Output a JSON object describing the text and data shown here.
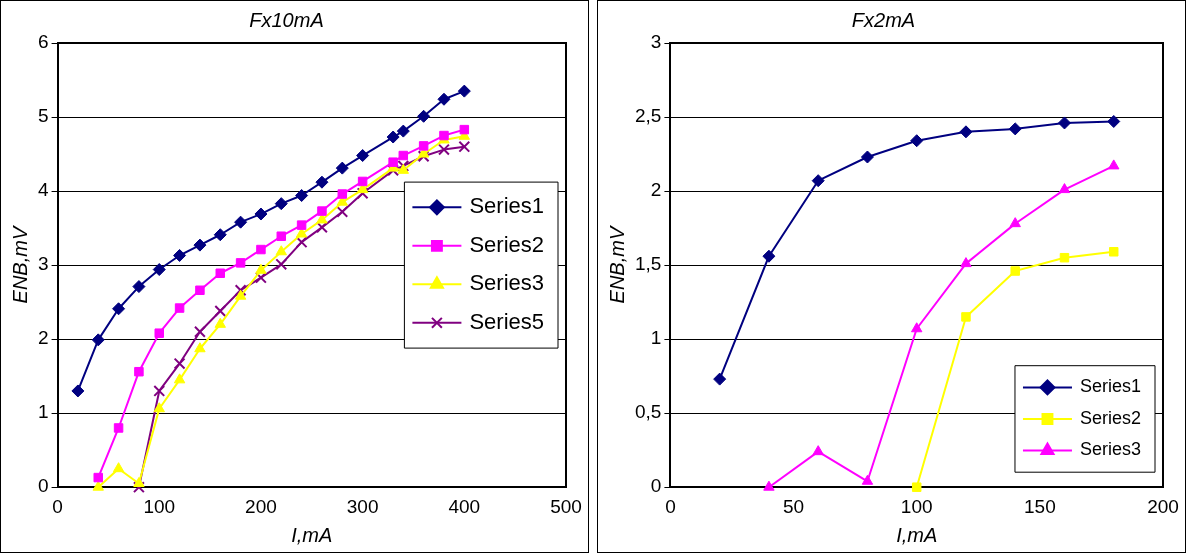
{
  "chart_data": [
    {
      "type": "line",
      "title": "Fx10mA",
      "xlabel": "I,mA",
      "ylabel": "ENB,mV",
      "xlim": [
        0,
        500
      ],
      "xticks": [
        0,
        100,
        200,
        300,
        400,
        500
      ],
      "ylim": [
        0,
        6
      ],
      "yticks": [
        0,
        1,
        2,
        3,
        4,
        5,
        6
      ],
      "grid": "y",
      "legend": "right",
      "line_style": "solid",
      "series": [
        {
          "name": "Series1",
          "color": "#000080",
          "marker": "diamond",
          "x": [
            20,
            40,
            60,
            80,
            100,
            120,
            140,
            160,
            180,
            200,
            220,
            240,
            260,
            280,
            300,
            330,
            340,
            360,
            380,
            400
          ],
          "values": [
            1.3,
            1.99,
            2.41,
            2.71,
            2.94,
            3.13,
            3.27,
            3.41,
            3.58,
            3.69,
            3.83,
            3.94,
            4.12,
            4.31,
            4.48,
            4.73,
            4.81,
            5.01,
            5.24,
            5.35
          ]
        },
        {
          "name": "Series2",
          "color": "#ff00ff",
          "marker": "square",
          "x": [
            40,
            60,
            80,
            100,
            120,
            140,
            160,
            180,
            200,
            220,
            240,
            260,
            280,
            300,
            330,
            340,
            360,
            380,
            400
          ],
          "values": [
            0.13,
            0.8,
            1.56,
            2.08,
            2.42,
            2.66,
            2.89,
            3.03,
            3.21,
            3.39,
            3.54,
            3.73,
            3.96,
            4.13,
            4.39,
            4.48,
            4.61,
            4.75,
            4.83
          ]
        },
        {
          "name": "Series3",
          "color": "#ffff00",
          "marker": "triangle",
          "x": [
            40,
            60,
            80,
            100,
            120,
            140,
            160,
            180,
            200,
            220,
            240,
            260,
            280,
            300,
            330,
            340,
            360,
            380,
            400
          ],
          "values": [
            0,
            0.25,
            0.05,
            1.06,
            1.45,
            1.87,
            2.2,
            2.58,
            2.93,
            3.18,
            3.42,
            3.61,
            3.85,
            4.02,
            4.31,
            4.28,
            4.5,
            4.69,
            4.74
          ]
        },
        {
          "name": "Series5",
          "color": "#800080",
          "marker": "cross",
          "x": [
            80,
            100,
            120,
            140,
            160,
            180,
            200,
            220,
            240,
            260,
            280,
            300,
            330,
            340,
            360,
            380,
            400
          ],
          "values": [
            0,
            1.3,
            1.67,
            2.1,
            2.38,
            2.66,
            2.83,
            3.01,
            3.31,
            3.51,
            3.72,
            3.97,
            4.28,
            4.34,
            4.47,
            4.56,
            4.6
          ]
        }
      ]
    },
    {
      "type": "line",
      "title": "Fx2mA",
      "xlabel": "I,mA",
      "ylabel": "ENB,mV",
      "xlim": [
        0,
        200
      ],
      "xticks": [
        0,
        50,
        100,
        150,
        200
      ],
      "ylim": [
        0,
        3
      ],
      "yticks": [
        0,
        {
          "value": 0.5,
          "label": "0,5"
        },
        1,
        {
          "value": 1.5,
          "label": "1,5"
        },
        2,
        {
          "value": 2.5,
          "label": "2,5"
        },
        3
      ],
      "grid": "y",
      "legend": "bottom right",
      "line_style": "solid",
      "series": [
        {
          "name": "Series1",
          "color": "#000080",
          "marker": "diamond",
          "x": [
            20,
            40,
            60,
            80,
            100,
            120,
            140,
            160,
            180
          ],
          "values": [
            0.73,
            1.56,
            2.07,
            2.23,
            2.34,
            2.4,
            2.42,
            2.46,
            2.47
          ]
        },
        {
          "name": "Series2",
          "color": "#ffff00",
          "marker": "square",
          "x": [
            100,
            120,
            140,
            160,
            180
          ],
          "values": [
            0,
            1.15,
            1.46,
            1.55,
            1.59
          ]
        },
        {
          "name": "Series3",
          "color": "#ff00ff",
          "marker": "triangle",
          "x": [
            40,
            60,
            80,
            100,
            120,
            140,
            160,
            180
          ],
          "values": [
            0,
            0.24,
            0.04,
            1.07,
            1.51,
            1.78,
            2.01,
            2.17
          ]
        }
      ]
    }
  ]
}
